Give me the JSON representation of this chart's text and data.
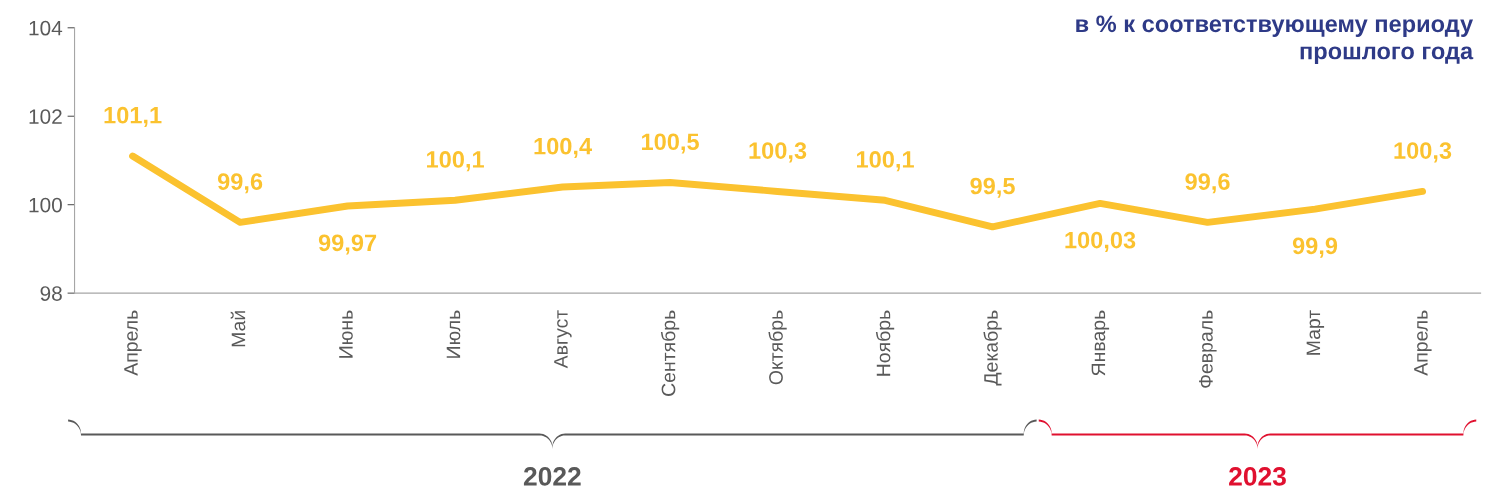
{
  "chart_data": {
    "type": "line",
    "title": "в % к соответствующему периоду\nпрошлого года",
    "categories": [
      "Апрель",
      "Май",
      "Июнь",
      "Июль",
      "Август",
      "Сентябрь",
      "Октябрь",
      "Ноябрь",
      "Декабрь",
      "Январь",
      "Февраль",
      "Март",
      "Апрель"
    ],
    "series": [
      {
        "color": "#fbc22f",
        "values": [
          101.1,
          99.6,
          99.97,
          100.1,
          100.4,
          100.5,
          100.3,
          100.1,
          99.5,
          100.03,
          99.6,
          99.9,
          100.3
        ],
        "value_labels": [
          "101,1",
          "99,6",
          "99,97",
          "100,1",
          "100,4",
          "100,5",
          "100,3",
          "100,1",
          "99,5",
          "100,03",
          "99,6",
          "99,9",
          "100,3"
        ]
      }
    ],
    "ylim": [
      98,
      104
    ],
    "yticks": [
      98,
      100,
      102,
      104
    ],
    "grid": false,
    "legend": false,
    "marker": "none",
    "line_style": "solid",
    "annotations": [
      "2022",
      "2023"
    ]
  }
}
